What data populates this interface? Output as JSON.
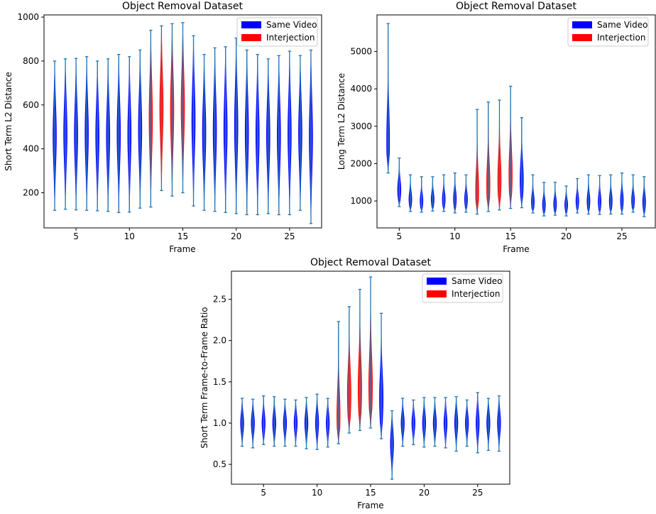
{
  "chart_data": [
    {
      "type": "violin",
      "title": "Object Removal Dataset",
      "xlabel": "Frame",
      "ylabel": "Short Term L2 Distance",
      "xlim": [
        2,
        28
      ],
      "ylim": [
        40,
        1010
      ],
      "xticks": [
        5,
        10,
        15,
        20,
        25
      ],
      "xtick_labels": [
        "5",
        "10",
        "15",
        "20",
        "25"
      ],
      "yticks": [
        200,
        400,
        600,
        800,
        1000
      ],
      "ytick_labels": [
        "200",
        "400",
        "600",
        "800",
        "1000"
      ],
      "legend": {
        "position": "top-right",
        "entries": [
          {
            "label": "Same Video",
            "color": "#0000ff"
          },
          {
            "label": "Interjection",
            "color": "#ff0000"
          }
        ]
      },
      "series": [
        {
          "name": "Same Video",
          "color": "#0000ff",
          "violins": [
            {
              "x": 3,
              "min": 120,
              "max": 800,
              "median": 460,
              "width": 0.32
            },
            {
              "x": 4,
              "min": 125,
              "max": 810,
              "median": 470,
              "width": 0.32
            },
            {
              "x": 5,
              "min": 122,
              "max": 812,
              "median": 465,
              "width": 0.32
            },
            {
              "x": 6,
              "min": 120,
              "max": 820,
              "median": 470,
              "width": 0.32
            },
            {
              "x": 7,
              "min": 118,
              "max": 800,
              "median": 460,
              "width": 0.32
            },
            {
              "x": 8,
              "min": 115,
              "max": 810,
              "median": 460,
              "width": 0.32
            },
            {
              "x": 9,
              "min": 110,
              "max": 830,
              "median": 470,
              "width": 0.32
            },
            {
              "x": 10,
              "min": 112,
              "max": 820,
              "median": 465,
              "width": 0.32
            },
            {
              "x": 11,
              "min": 130,
              "max": 850,
              "median": 490,
              "width": 0.32
            },
            {
              "x": 16,
              "min": 140,
              "max": 915,
              "median": 530,
              "width": 0.32
            },
            {
              "x": 17,
              "min": 120,
              "max": 830,
              "median": 475,
              "width": 0.32
            },
            {
              "x": 18,
              "min": 115,
              "max": 860,
              "median": 485,
              "width": 0.32
            },
            {
              "x": 19,
              "min": 110,
              "max": 865,
              "median": 490,
              "width": 0.32
            },
            {
              "x": 20,
              "min": 105,
              "max": 905,
              "median": 505,
              "width": 0.32
            },
            {
              "x": 21,
              "min": 100,
              "max": 850,
              "median": 475,
              "width": 0.32
            },
            {
              "x": 22,
              "min": 100,
              "max": 830,
              "median": 465,
              "width": 0.32
            },
            {
              "x": 23,
              "min": 105,
              "max": 810,
              "median": 460,
              "width": 0.32
            },
            {
              "x": 24,
              "min": 100,
              "max": 825,
              "median": 462,
              "width": 0.32
            },
            {
              "x": 25,
              "min": 100,
              "max": 845,
              "median": 470,
              "width": 0.32
            },
            {
              "x": 26,
              "min": 120,
              "max": 825,
              "median": 472,
              "width": 0.32
            },
            {
              "x": 27,
              "min": 60,
              "max": 850,
              "median": 455,
              "width": 0.32
            }
          ]
        },
        {
          "name": "Interjection",
          "color": "#ff0000",
          "violins": [
            {
              "x": 12,
              "min": 135,
              "max": 940,
              "median": 540,
              "width": 0.32
            },
            {
              "x": 13,
              "min": 210,
              "max": 960,
              "median": 590,
              "width": 0.32
            },
            {
              "x": 14,
              "min": 185,
              "max": 970,
              "median": 580,
              "width": 0.32
            },
            {
              "x": 15,
              "min": 200,
              "max": 975,
              "median": 590,
              "width": 0.32
            }
          ]
        }
      ]
    },
    {
      "type": "violin",
      "title": "Object Removal Dataset",
      "xlabel": "Frame",
      "ylabel": "Long Term L2 Distance",
      "xlim": [
        3,
        28
      ],
      "ylim": [
        280,
        5980
      ],
      "xticks": [
        5,
        10,
        15,
        20,
        25
      ],
      "xtick_labels": [
        "5",
        "10",
        "15",
        "20",
        "25"
      ],
      "yticks": [
        1000,
        2000,
        3000,
        4000,
        5000
      ],
      "ytick_labels": [
        "1000",
        "2000",
        "3000",
        "4000",
        "5000"
      ],
      "legend": {
        "position": "top-right",
        "entries": [
          {
            "label": "Same Video",
            "color": "#0000ff"
          },
          {
            "label": "Interjection",
            "color": "#ff0000"
          }
        ]
      },
      "series": [
        {
          "name": "Same Video",
          "color": "#0000ff",
          "violins": [
            {
              "x": 4,
              "min": 1750,
              "max": 5750,
              "median": 2620,
              "width": 0.26
            },
            {
              "x": 5,
              "min": 850,
              "max": 2150,
              "median": 1300,
              "width": 0.3
            },
            {
              "x": 6,
              "min": 720,
              "max": 1700,
              "median": 1050,
              "width": 0.26
            },
            {
              "x": 7,
              "min": 700,
              "max": 1650,
              "median": 1000,
              "width": 0.26
            },
            {
              "x": 8,
              "min": 730,
              "max": 1650,
              "median": 1050,
              "width": 0.26
            },
            {
              "x": 9,
              "min": 720,
              "max": 1700,
              "median": 1050,
              "width": 0.26
            },
            {
              "x": 10,
              "min": 680,
              "max": 1750,
              "median": 1060,
              "width": 0.26
            },
            {
              "x": 11,
              "min": 700,
              "max": 1700,
              "median": 1050,
              "width": 0.26
            },
            {
              "x": 16,
              "min": 820,
              "max": 3230,
              "median": 1560,
              "width": 0.3
            },
            {
              "x": 17,
              "min": 680,
              "max": 1700,
              "median": 980,
              "width": 0.26
            },
            {
              "x": 18,
              "min": 600,
              "max": 1500,
              "median": 900,
              "width": 0.26
            },
            {
              "x": 19,
              "min": 620,
              "max": 1500,
              "median": 920,
              "width": 0.26
            },
            {
              "x": 20,
              "min": 600,
              "max": 1400,
              "median": 900,
              "width": 0.26
            },
            {
              "x": 21,
              "min": 680,
              "max": 1600,
              "median": 1000,
              "width": 0.26
            },
            {
              "x": 22,
              "min": 650,
              "max": 1700,
              "median": 1000,
              "width": 0.26
            },
            {
              "x": 23,
              "min": 640,
              "max": 1680,
              "median": 990,
              "width": 0.26
            },
            {
              "x": 24,
              "min": 650,
              "max": 1700,
              "median": 1000,
              "width": 0.26
            },
            {
              "x": 25,
              "min": 650,
              "max": 1750,
              "median": 1020,
              "width": 0.26
            },
            {
              "x": 26,
              "min": 700,
              "max": 1700,
              "median": 1020,
              "width": 0.26
            },
            {
              "x": 27,
              "min": 580,
              "max": 1650,
              "median": 980,
              "width": 0.26
            }
          ]
        },
        {
          "name": "Interjection",
          "color": "#ff0000",
          "violins": [
            {
              "x": 12,
              "min": 650,
              "max": 3450,
              "median": 1250,
              "width": 0.28
            },
            {
              "x": 13,
              "min": 720,
              "max": 3650,
              "median": 1450,
              "width": 0.3
            },
            {
              "x": 14,
              "min": 760,
              "max": 3700,
              "median": 1580,
              "width": 0.3
            },
            {
              "x": 15,
              "min": 800,
              "max": 4070,
              "median": 1720,
              "width": 0.3
            }
          ]
        }
      ]
    },
    {
      "type": "violin",
      "title": "Object Removal Dataset",
      "xlabel": "Frame",
      "ylabel": "Short Term Frame-to-Frame Ratio",
      "xlim": [
        2,
        28
      ],
      "ylim": [
        0.26,
        2.84
      ],
      "xticks": [
        5,
        10,
        15,
        20,
        25
      ],
      "xtick_labels": [
        "5",
        "10",
        "15",
        "20",
        "25"
      ],
      "yticks": [
        0.5,
        1.0,
        1.5,
        2.0,
        2.5
      ],
      "ytick_labels": [
        "0.5",
        "1.0",
        "1.5",
        "2.0",
        "2.5"
      ],
      "legend": {
        "position": "top-right",
        "entries": [
          {
            "label": "Same Video",
            "color": "#0000ff"
          },
          {
            "label": "Interjection",
            "color": "#ff0000"
          }
        ]
      },
      "series": [
        {
          "name": "Same Video",
          "color": "#0000ff",
          "violins": [
            {
              "x": 3,
              "min": 0.72,
              "max": 1.3,
              "median": 1.0,
              "width": 0.3
            },
            {
              "x": 4,
              "min": 0.7,
              "max": 1.29,
              "median": 1.0,
              "width": 0.3
            },
            {
              "x": 5,
              "min": 0.74,
              "max": 1.33,
              "median": 1.0,
              "width": 0.3
            },
            {
              "x": 6,
              "min": 0.72,
              "max": 1.32,
              "median": 1.0,
              "width": 0.3
            },
            {
              "x": 7,
              "min": 0.72,
              "max": 1.29,
              "median": 1.0,
              "width": 0.3
            },
            {
              "x": 8,
              "min": 0.72,
              "max": 1.28,
              "median": 1.0,
              "width": 0.3
            },
            {
              "x": 9,
              "min": 0.69,
              "max": 1.31,
              "median": 1.0,
              "width": 0.3
            },
            {
              "x": 10,
              "min": 0.68,
              "max": 1.35,
              "median": 1.0,
              "width": 0.3
            },
            {
              "x": 11,
              "min": 0.71,
              "max": 1.3,
              "median": 1.0,
              "width": 0.3
            },
            {
              "x": 16,
              "min": 0.81,
              "max": 2.33,
              "median": 1.3,
              "width": 0.34
            },
            {
              "x": 17,
              "min": 0.32,
              "max": 1.15,
              "median": 0.75,
              "width": 0.3
            },
            {
              "x": 18,
              "min": 0.72,
              "max": 1.3,
              "median": 1.0,
              "width": 0.3
            },
            {
              "x": 19,
              "min": 0.74,
              "max": 1.28,
              "median": 1.0,
              "width": 0.3
            },
            {
              "x": 20,
              "min": 0.71,
              "max": 1.31,
              "median": 1.0,
              "width": 0.3
            },
            {
              "x": 21,
              "min": 0.72,
              "max": 1.31,
              "median": 1.0,
              "width": 0.3
            },
            {
              "x": 22,
              "min": 0.7,
              "max": 1.31,
              "median": 1.0,
              "width": 0.3
            },
            {
              "x": 23,
              "min": 0.66,
              "max": 1.32,
              "median": 1.0,
              "width": 0.3
            },
            {
              "x": 24,
              "min": 0.72,
              "max": 1.28,
              "median": 1.0,
              "width": 0.3
            },
            {
              "x": 25,
              "min": 0.64,
              "max": 1.37,
              "median": 1.0,
              "width": 0.3
            },
            {
              "x": 26,
              "min": 0.67,
              "max": 1.3,
              "median": 1.0,
              "width": 0.3
            },
            {
              "x": 27,
              "min": 0.66,
              "max": 1.33,
              "median": 1.0,
              "width": 0.3
            }
          ]
        },
        {
          "name": "Interjection",
          "color": "#ff0000",
          "violins": [
            {
              "x": 12,
              "min": 0.75,
              "max": 2.23,
              "median": 1.1,
              "width": 0.3
            },
            {
              "x": 13,
              "min": 0.88,
              "max": 2.41,
              "median": 1.35,
              "width": 0.34
            },
            {
              "x": 14,
              "min": 0.91,
              "max": 2.62,
              "median": 1.42,
              "width": 0.34
            },
            {
              "x": 15,
              "min": 0.94,
              "max": 2.77,
              "median": 1.45,
              "width": 0.34
            }
          ]
        }
      ]
    }
  ]
}
